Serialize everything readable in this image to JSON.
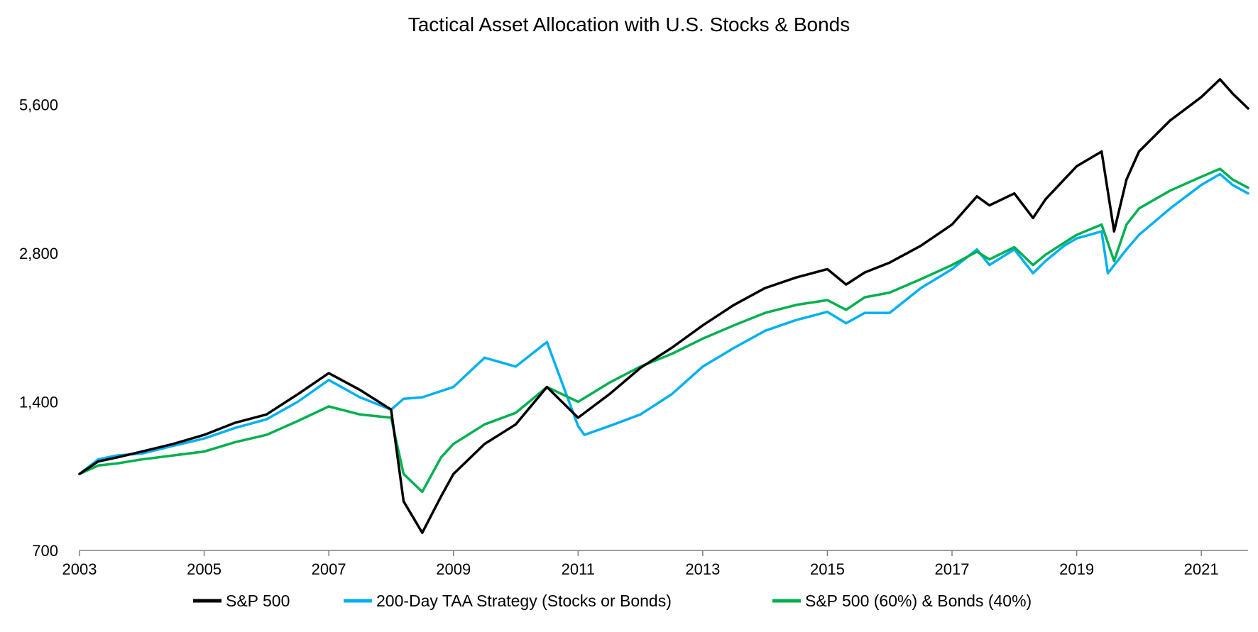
{
  "chart_data": {
    "type": "line",
    "title": "Tactical Asset Allocation with U.S. Stocks & Bonds",
    "xlabel": "",
    "ylabel": "",
    "y_scale": "log",
    "ylim": [
      700,
      7000
    ],
    "xlim": [
      2003.0,
      2021.75
    ],
    "y_ticks": [
      700,
      1400,
      2800,
      5600
    ],
    "y_tick_labels": [
      "700",
      "1,400",
      "2,800",
      "5,600"
    ],
    "x_ticks": [
      2003,
      2005,
      2007,
      2009,
      2011,
      2013,
      2015,
      2017,
      2019,
      2021
    ],
    "x_tick_labels": [
      "2003",
      "2005",
      "2007",
      "2009",
      "2011",
      "2013",
      "2015",
      "2017",
      "2019",
      "2021"
    ],
    "grid": false,
    "legend_position": "bottom",
    "series": [
      {
        "name": "S&P 500",
        "color": "#000000",
        "x": [
          2003.0,
          2003.3,
          2003.6,
          2004.0,
          2004.5,
          2005.0,
          2005.5,
          2006.0,
          2006.5,
          2007.0,
          2007.5,
          2008.0,
          2008.2,
          2008.5,
          2008.8,
          2009.0,
          2009.5,
          2010.0,
          2010.5,
          2011.0,
          2011.5,
          2012.0,
          2012.5,
          2013.0,
          2013.5,
          2014.0,
          2014.5,
          2015.0,
          2015.3,
          2015.6,
          2016.0,
          2016.5,
          2017.0,
          2017.4,
          2017.6,
          2018.0,
          2018.3,
          2018.5,
          2018.8,
          2019.0,
          2019.4,
          2019.6,
          2019.8,
          2020.0,
          2020.5,
          2021.0,
          2021.3,
          2021.5,
          2021.75
        ],
        "values": [
          1000,
          1060,
          1080,
          1110,
          1150,
          1200,
          1270,
          1320,
          1450,
          1600,
          1480,
          1350,
          880,
          760,
          900,
          1000,
          1150,
          1260,
          1500,
          1300,
          1450,
          1640,
          1800,
          2000,
          2200,
          2380,
          2500,
          2600,
          2420,
          2560,
          2680,
          2900,
          3200,
          3650,
          3500,
          3700,
          3300,
          3600,
          3950,
          4200,
          4500,
          3100,
          3950,
          4500,
          5200,
          5800,
          6300,
          5900,
          5500
        ]
      },
      {
        "name": "200-Day TAA Strategy (Stocks or Bonds)",
        "color": "#00b0f0",
        "x": [
          2003.0,
          2003.3,
          2003.6,
          2004.0,
          2004.5,
          2005.0,
          2005.5,
          2006.0,
          2006.5,
          2007.0,
          2007.5,
          2008.0,
          2008.2,
          2008.5,
          2009.0,
          2009.5,
          2010.0,
          2010.5,
          2011.0,
          2011.1,
          2011.5,
          2012.0,
          2012.5,
          2013.0,
          2013.5,
          2014.0,
          2014.5,
          2015.0,
          2015.3,
          2015.6,
          2016.0,
          2016.5,
          2017.0,
          2017.4,
          2017.6,
          2018.0,
          2018.3,
          2018.5,
          2018.8,
          2019.0,
          2019.4,
          2019.5,
          2019.8,
          2020.0,
          2020.5,
          2021.0,
          2021.3,
          2021.5,
          2021.75
        ],
        "values": [
          1000,
          1070,
          1090,
          1100,
          1140,
          1180,
          1240,
          1290,
          1400,
          1550,
          1430,
          1350,
          1420,
          1430,
          1500,
          1720,
          1650,
          1850,
          1250,
          1200,
          1250,
          1320,
          1450,
          1650,
          1800,
          1950,
          2050,
          2130,
          2020,
          2120,
          2120,
          2380,
          2600,
          2850,
          2650,
          2850,
          2550,
          2700,
          2900,
          3000,
          3100,
          2550,
          2850,
          3050,
          3450,
          3850,
          4050,
          3850,
          3700
        ]
      },
      {
        "name": "S&P 500 (60%) & Bonds (40%)",
        "color": "#00b050",
        "x": [
          2003.0,
          2003.3,
          2003.6,
          2004.0,
          2004.5,
          2005.0,
          2005.5,
          2006.0,
          2006.5,
          2007.0,
          2007.5,
          2008.0,
          2008.2,
          2008.5,
          2008.8,
          2009.0,
          2009.5,
          2010.0,
          2010.5,
          2011.0,
          2011.5,
          2012.0,
          2012.5,
          2013.0,
          2013.5,
          2014.0,
          2014.5,
          2015.0,
          2015.3,
          2015.6,
          2016.0,
          2016.5,
          2017.0,
          2017.4,
          2017.6,
          2018.0,
          2018.3,
          2018.5,
          2018.8,
          2019.0,
          2019.4,
          2019.6,
          2019.8,
          2020.0,
          2020.5,
          2021.0,
          2021.3,
          2021.5,
          2021.75
        ],
        "values": [
          1000,
          1040,
          1050,
          1070,
          1090,
          1110,
          1160,
          1200,
          1280,
          1370,
          1320,
          1300,
          1000,
          920,
          1080,
          1150,
          1260,
          1330,
          1500,
          1400,
          1530,
          1650,
          1750,
          1880,
          2000,
          2120,
          2200,
          2250,
          2150,
          2280,
          2330,
          2480,
          2650,
          2820,
          2720,
          2880,
          2650,
          2780,
          2940,
          3050,
          3200,
          2700,
          3200,
          3450,
          3750,
          4000,
          4150,
          3950,
          3800
        ]
      }
    ]
  }
}
